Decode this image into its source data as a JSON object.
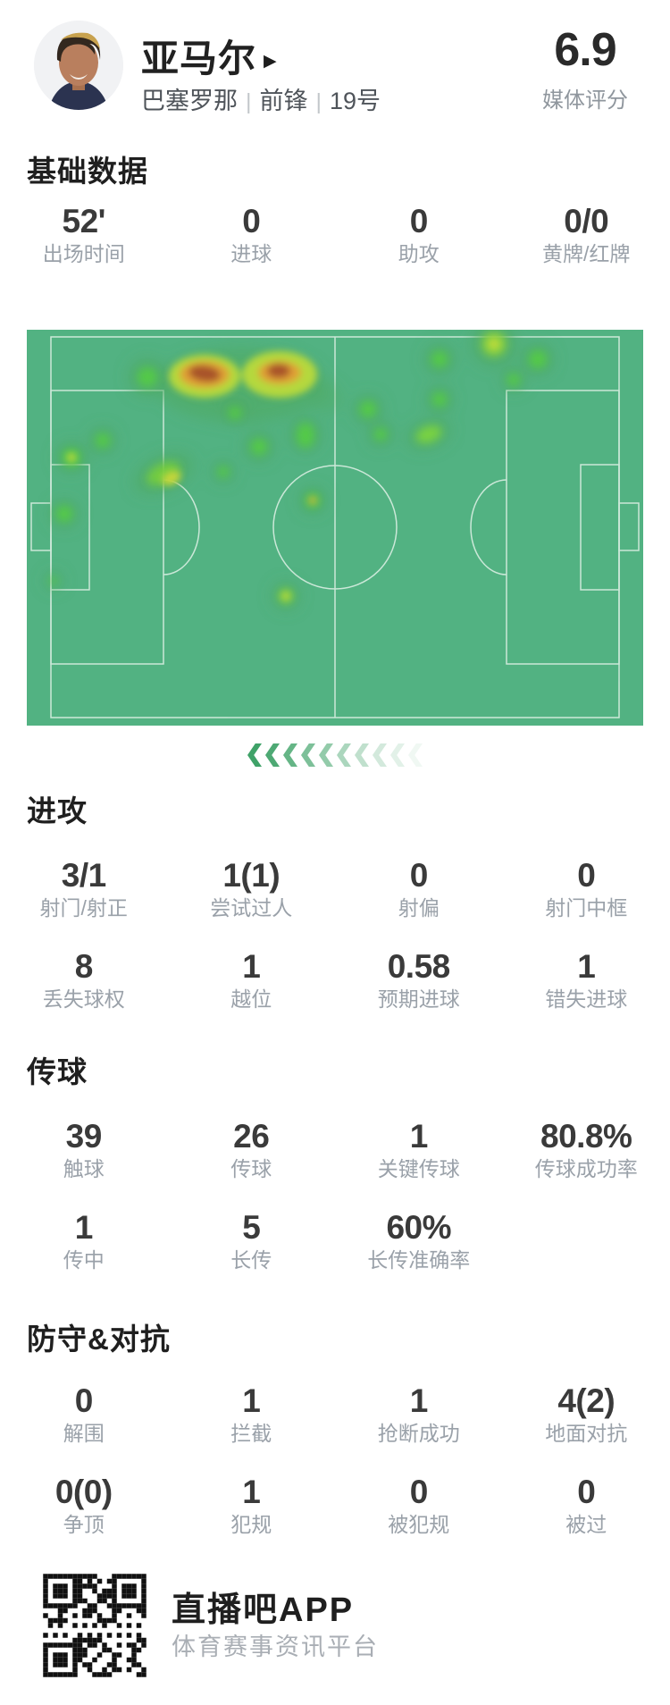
{
  "header": {
    "player_name": "亚马尔",
    "name_caret": "▶",
    "team": "巴塞罗那",
    "position": "前锋",
    "number": "19号",
    "separator": "|",
    "rating": "6.9",
    "rating_label": "媒体评分"
  },
  "sections": {
    "basic": {
      "title": "基础数据",
      "rows": [
        [
          {
            "value": "52'",
            "label": "出场时间"
          },
          {
            "value": "0",
            "label": "进球"
          },
          {
            "value": "0",
            "label": "助攻"
          },
          {
            "value": "0/0",
            "label": "黄牌/红牌"
          }
        ]
      ]
    },
    "attack": {
      "title": "进攻",
      "rows": [
        [
          {
            "value": "3/1",
            "label": "射门/射正"
          },
          {
            "value": "1(1)",
            "label": "尝试过人"
          },
          {
            "value": "0",
            "label": "射偏"
          },
          {
            "value": "0",
            "label": "射门中框"
          }
        ],
        [
          {
            "value": "8",
            "label": "丢失球权"
          },
          {
            "value": "1",
            "label": "越位"
          },
          {
            "value": "0.58",
            "label": "预期进球"
          },
          {
            "value": "1",
            "label": "错失进球"
          }
        ]
      ]
    },
    "passing": {
      "title": "传球",
      "rows": [
        [
          {
            "value": "39",
            "label": "触球"
          },
          {
            "value": "26",
            "label": "传球"
          },
          {
            "value": "1",
            "label": "关键传球"
          },
          {
            "value": "80.8%",
            "label": "传球成功率"
          }
        ],
        [
          {
            "value": "1",
            "label": "传中"
          },
          {
            "value": "5",
            "label": "长传"
          },
          {
            "value": "60%",
            "label": "长传准确率"
          }
        ]
      ]
    },
    "defense": {
      "title": "防守&对抗",
      "rows": [
        [
          {
            "value": "0",
            "label": "解围"
          },
          {
            "value": "1",
            "label": "拦截"
          },
          {
            "value": "1",
            "label": "抢断成功"
          },
          {
            "value": "4(2)",
            "label": "地面对抗"
          }
        ],
        [
          {
            "value": "0(0)",
            "label": "争顶"
          },
          {
            "value": "1",
            "label": "犯规"
          },
          {
            "value": "0",
            "label": "被犯规"
          },
          {
            "value": "0",
            "label": "被过"
          }
        ]
      ]
    }
  },
  "heatmap": {
    "description": "player position heatmap on football pitch, hot zones upper-left midfield",
    "attack_direction": "left"
  },
  "footer": {
    "app_name": "直播吧APP",
    "app_desc": "体育赛事资讯平台"
  },
  "colors": {
    "pitch_green": "#52b282",
    "pitch_line": "#d9eee2",
    "heat_low": "#55cc44",
    "heat_mid": "#c9d93c",
    "heat_high": "#e0a036",
    "heat_max": "#a8522c",
    "arrow_green": "#3fa268",
    "value_text": "#3a3a3a",
    "label_text": "#9aa1a9"
  }
}
